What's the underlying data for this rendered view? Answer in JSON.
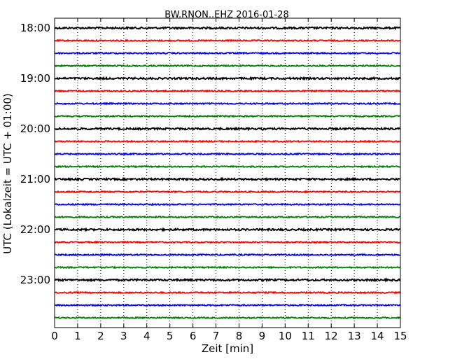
{
  "chart_data": {
    "type": "line",
    "title": "BW.RNON..EHZ 2016-01-28",
    "xlabel": "Zeit  [min]",
    "ylabel": "UTC (Lokalzeit = UTC + 01:00)",
    "xlim": [
      0,
      15
    ],
    "x_ticks": [
      "0",
      "1",
      "2",
      "3",
      "4",
      "5",
      "6",
      "7",
      "8",
      "9",
      "10",
      "11",
      "12",
      "13",
      "14",
      "15"
    ],
    "y_tick_labels": [
      "18:00",
      "19:00",
      "20:00",
      "21:00",
      "22:00",
      "23:00"
    ],
    "grid": "vertical dotted",
    "line_color_cycle": [
      "#000000",
      "#ff0000",
      "#0000ff",
      "#008000"
    ],
    "traces": [
      {
        "start": "18:00"
      },
      {
        "start": "18:15"
      },
      {
        "start": "18:30"
      },
      {
        "start": "18:45"
      },
      {
        "start": "19:00"
      },
      {
        "start": "19:15"
      },
      {
        "start": "19:30"
      },
      {
        "start": "19:45"
      },
      {
        "start": "20:00"
      },
      {
        "start": "20:15"
      },
      {
        "start": "20:30"
      },
      {
        "start": "20:45"
      },
      {
        "start": "21:00"
      },
      {
        "start": "21:15"
      },
      {
        "start": "21:30"
      },
      {
        "start": "21:45"
      },
      {
        "start": "22:00"
      },
      {
        "start": "22:15"
      },
      {
        "start": "22:30"
      },
      {
        "start": "22:45"
      },
      {
        "start": "23:00"
      },
      {
        "start": "23:15"
      },
      {
        "start": "23:30"
      },
      {
        "start": "23:45"
      }
    ]
  }
}
